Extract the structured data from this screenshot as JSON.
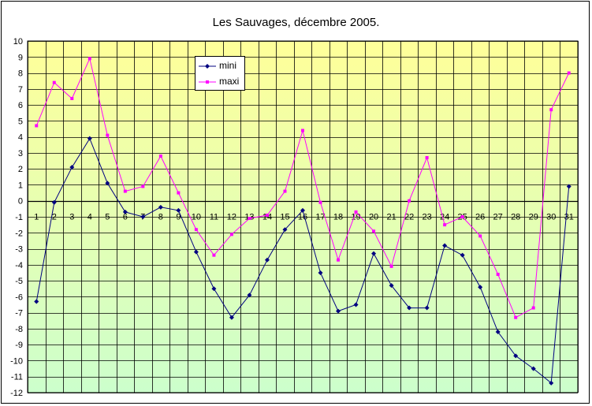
{
  "colors": {
    "mini": "#000080",
    "maxi": "#FF00FF",
    "grid": "#000000",
    "bg_top": "#FFFF99",
    "bg_bottom": "#CCFFCC"
  },
  "chart_data": {
    "type": "line",
    "title": "Les Sauvages, décembre 2005.",
    "xlabel": "",
    "ylabel": "",
    "categories": [
      "1",
      "2",
      "3",
      "4",
      "5",
      "6",
      "7",
      "8",
      "9",
      "10",
      "11",
      "12",
      "13",
      "14",
      "15",
      "16",
      "17",
      "18",
      "19",
      "20",
      "21",
      "22",
      "23",
      "24",
      "25",
      "26",
      "27",
      "28",
      "29",
      "30",
      "31"
    ],
    "ylim": [
      -12,
      10
    ],
    "yticks": [
      "10",
      "9",
      "8",
      "7",
      "6",
      "5",
      "4",
      "3",
      "2",
      "1",
      "0",
      "-1",
      "-2",
      "-3",
      "-4",
      "-5",
      "-6",
      "-7",
      "-8",
      "-9",
      "-10",
      "-11",
      "-12"
    ],
    "grid": true,
    "legend_position": "top-left",
    "series": [
      {
        "name": "mini",
        "values": [
          -6.3,
          -0.1,
          2.1,
          3.9,
          1.1,
          -0.7,
          -1.0,
          -0.4,
          -0.6,
          -3.2,
          -5.5,
          -7.3,
          -5.9,
          -3.7,
          -1.8,
          -0.6,
          -4.5,
          -6.9,
          -6.5,
          -3.3,
          -5.3,
          -6.7,
          -6.7,
          -2.8,
          -3.4,
          -5.4,
          -8.2,
          -9.7,
          -10.5,
          -11.4,
          0.9
        ]
      },
      {
        "name": "maxi",
        "values": [
          4.7,
          7.4,
          6.4,
          8.9,
          4.1,
          0.6,
          0.9,
          2.8,
          0.5,
          -1.8,
          -3.4,
          -2.1,
          -1.1,
          -0.9,
          0.6,
          4.4,
          -0.1,
          -3.7,
          -0.7,
          -1.9,
          -4.1,
          0.0,
          2.7,
          -1.5,
          -1.0,
          -2.2,
          -4.6,
          -7.3,
          -6.7,
          5.7,
          8.0
        ]
      }
    ]
  }
}
